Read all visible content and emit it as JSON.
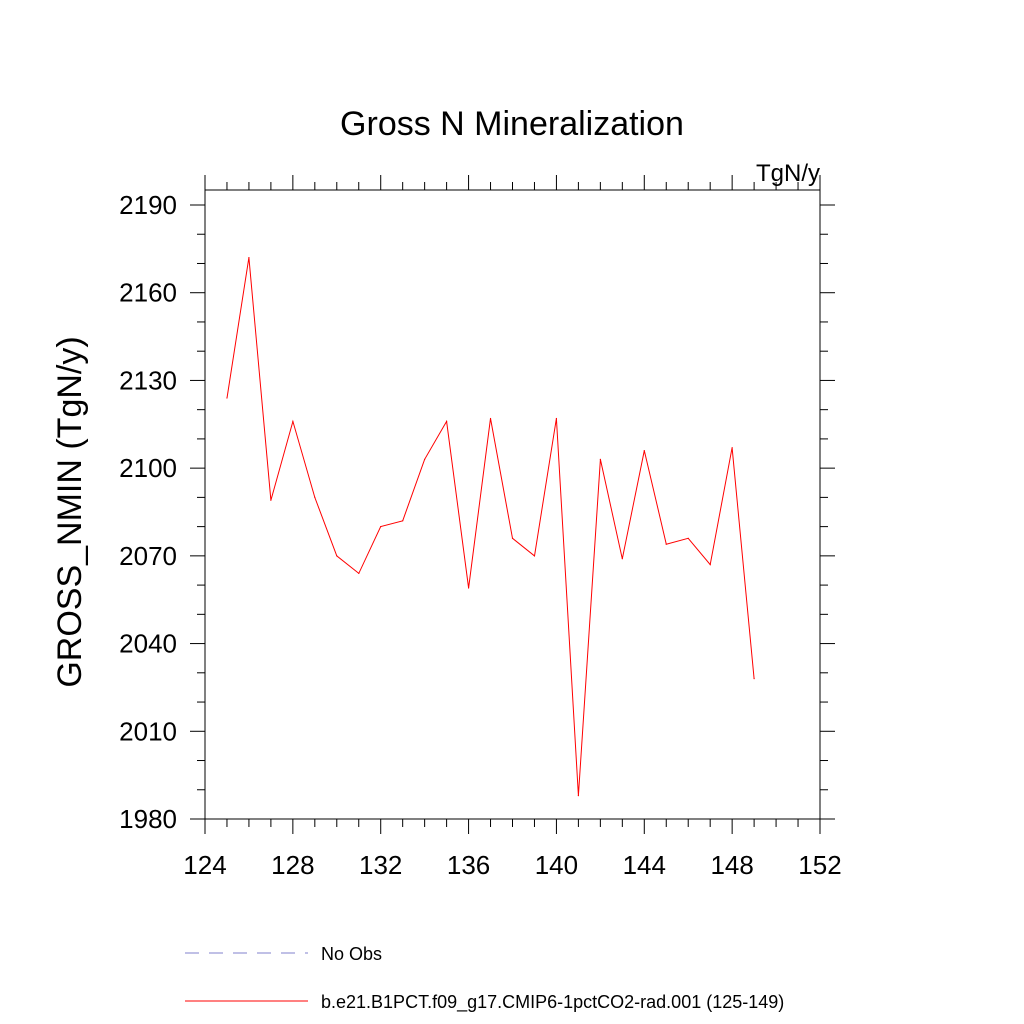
{
  "chart_data": {
    "type": "line",
    "title": "Gross N Mineralization",
    "units_label": "TgN/y",
    "ylabel": "GROSS_NMIN  (TgN/y)",
    "xlabel": "",
    "xlim": [
      124,
      152
    ],
    "ylim": [
      1980,
      2195
    ],
    "x_ticks": [
      124,
      128,
      132,
      136,
      140,
      144,
      148,
      152
    ],
    "y_ticks": [
      1980,
      2010,
      2040,
      2070,
      2100,
      2130,
      2160,
      2190
    ],
    "grid": false,
    "legend_position": "bottom",
    "series": [
      {
        "name": "b.e21.B1PCT.f09_g17.CMIP6-1pctCO2-rad.001 (125-149)",
        "color": "#ff0000",
        "style": "solid",
        "x": [
          125,
          126,
          127,
          128,
          129,
          130,
          131,
          132,
          133,
          134,
          135,
          136,
          137,
          138,
          139,
          140,
          141,
          142,
          143,
          144,
          145,
          146,
          147,
          148,
          149
        ],
        "y": [
          2124,
          2172,
          2089,
          2116,
          2090,
          2070,
          2064,
          2080,
          2082,
          2103,
          2116,
          2059,
          2117,
          2076,
          2070,
          2117,
          1988,
          2103,
          2069,
          2106,
          2074,
          2076,
          2067,
          2107,
          2028
        ]
      },
      {
        "name": "No Obs",
        "color": "#8080cc",
        "style": "dashed",
        "x": [],
        "y": []
      }
    ]
  }
}
